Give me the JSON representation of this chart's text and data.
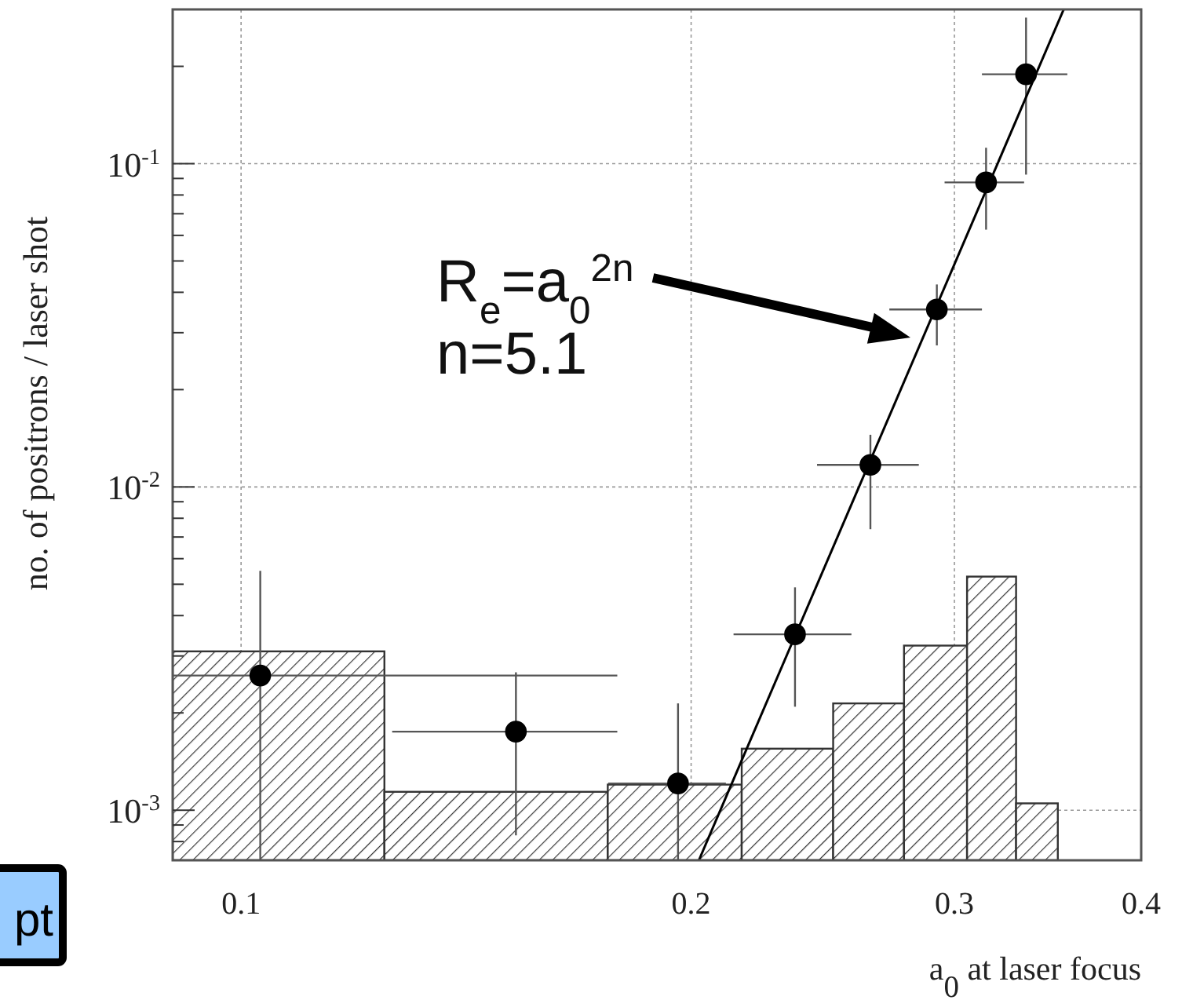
{
  "chart_data": {
    "type": "scatter",
    "xlabel": "a$_{0}$ at laser focus",
    "ylabel": "no. of positrons / laser shot",
    "log": "xy",
    "grid": true,
    "xlim": [
      0.09,
      0.4
    ],
    "xticks": [
      0.1,
      0.2,
      0.3,
      0.4
    ],
    "ylim": [
      0.0007,
      0.3
    ],
    "yticks": [
      {
        "value": 0.0008,
        "label": null
      },
      {
        "value": 0.0009,
        "label": null
      },
      {
        "value": 0.001,
        "label": "10$^{-3}$"
      },
      {
        "value": 0.002,
        "label": null
      },
      {
        "value": 0.003,
        "label": null
      },
      {
        "value": 0.004,
        "label": null
      },
      {
        "value": 0.005,
        "label": null
      },
      {
        "value": 0.006,
        "label": null
      },
      {
        "value": 0.007,
        "label": null
      },
      {
        "value": 0.008,
        "label": null
      },
      {
        "value": 0.009,
        "label": null
      },
      {
        "value": 0.01,
        "label": "10$^{-2}$"
      },
      {
        "value": 0.02,
        "label": null
      },
      {
        "value": 0.03,
        "label": null
      },
      {
        "value": 0.04,
        "label": null
      },
      {
        "value": 0.05,
        "label": null
      },
      {
        "value": 0.06,
        "label": null
      },
      {
        "value": 0.07,
        "label": null
      },
      {
        "value": 0.08,
        "label": null
      },
      {
        "value": 0.09,
        "label": null
      },
      {
        "value": 0.1,
        "label": "10$^{-1}$"
      },
      {
        "value": 0.2,
        "label": null
      }
    ],
    "series": [
      {
        "type": "histogram",
        "color": "#333333",
        "bins": [
          0.09,
          0.1247,
          0.1759,
          0.2162,
          0.2489,
          0.2776,
          0.3059,
          0.3299,
          0.3518
        ],
        "values": [
          0.0031,
          0.00114,
          0.0012,
          0.00155,
          0.00214,
          0.00323,
          0.00528,
          0.00105
        ]
      },
      {
        "marker": "circle",
        "color": "#000000",
        "x": [
          0.103,
          0.1527,
          0.196,
          0.2347,
          0.2636,
          0.292,
          0.315,
          0.335
        ],
        "values": [
          0.00261,
          0.00175,
          0.00121,
          0.0035,
          0.0117,
          0.0354,
          0.0875,
          0.189
        ],
        "errors": [
          [
            0.0007,
            0.0055
          ],
          [
            0.000836,
            0.00267
          ],
          [
            0.0007,
            0.00214
          ],
          [
            0.00209,
            0.00489
          ],
          [
            0.0074,
            0.0145
          ],
          [
            0.0274,
            0.0423
          ],
          [
            0.0625,
            0.112
          ],
          [
            0.0925,
            0.283
          ]
        ],
        "xerrors": [
          [
            0.09,
            0.1785
          ],
          [
            0.1262,
            0.1785
          ],
          [
            0.176,
            0.211
          ],
          [
            0.2135,
            0.256
          ],
          [
            0.2428,
            0.284
          ],
          [
            0.2714,
            0.313
          ],
          [
            0.2955,
            0.334
          ],
          [
            0.313,
            0.357
          ]
        ]
      },
      {
        "type": "line",
        "color": "#000000",
        "x": [
          0.2024,
          0.355
        ],
        "values": [
          0.0007,
          0.3
        ]
      }
    ],
    "annotations": [
      "R$_{e}$=a$_{0}$$^{2n}$",
      "n=5.1",
      "pt"
    ]
  }
}
